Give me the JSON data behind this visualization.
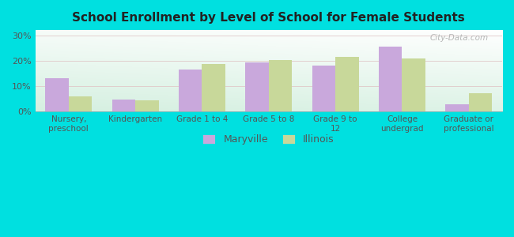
{
  "title": "School Enrollment by Level of School for Female Students",
  "categories": [
    "Nursery,\npreschool",
    "Kindergarten",
    "Grade 1 to 4",
    "Grade 5 to 8",
    "Grade 9 to\n12",
    "College\nundergrad",
    "Graduate or\nprofessional"
  ],
  "maryville": [
    13.0,
    4.8,
    16.5,
    19.2,
    18.0,
    25.5,
    2.8
  ],
  "illinois": [
    6.0,
    4.3,
    18.8,
    20.3,
    21.5,
    21.0,
    7.2
  ],
  "maryville_color": "#c9a8dc",
  "illinois_color": "#c8d89a",
  "background_outer": "#00e0e0",
  "yticks": [
    0,
    10,
    20,
    30
  ],
  "ylim": [
    0,
    32
  ],
  "bar_width": 0.35,
  "legend_labels": [
    "Maryville",
    "Illinois"
  ],
  "watermark": "City-Data.com",
  "grad_top_left": "#c5e8d8",
  "grad_top_right": "#f0f8f0",
  "grad_bottom_left": "#c5e8d8",
  "grad_bottom_right": "#e8f4ee"
}
